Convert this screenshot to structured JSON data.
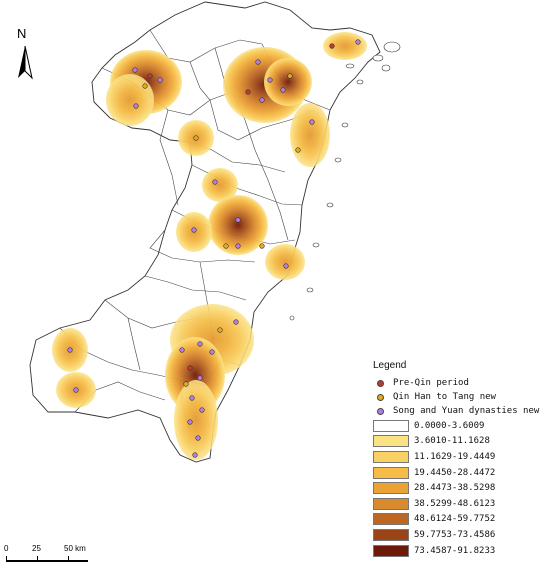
{
  "north_arrow": {
    "label": "N"
  },
  "legend": {
    "title": "Legend",
    "point_layers": [
      {
        "label": "Pre-Qin period",
        "color": "#c0392b"
      },
      {
        "label": "Qin Han to Tang new",
        "color": "#e6a91a"
      },
      {
        "label": "Song and Yuan dynasties new",
        "color": "#b57ce0"
      }
    ],
    "density_classes": [
      {
        "label": "0.0000-3.6009",
        "color": "#ffffff"
      },
      {
        "label": "3.6010-11.1628",
        "color": "#fbe283"
      },
      {
        "label": "11.1629-19.4449",
        "color": "#f9d064"
      },
      {
        "label": "19.4450-28.4472",
        "color": "#f6bc46"
      },
      {
        "label": "28.4473-38.5298",
        "color": "#eca336"
      },
      {
        "label": "38.5299-48.6123",
        "color": "#d9892e"
      },
      {
        "label": "48.6124-59.7752",
        "color": "#bc6823"
      },
      {
        "label": "59.7753-73.4586",
        "color": "#9a4517"
      },
      {
        "label": "73.4587-91.8233",
        "color": "#6e1a08"
      }
    ]
  },
  "scale_bar": {
    "labels": [
      "0",
      "25",
      "50 km"
    ]
  }
}
